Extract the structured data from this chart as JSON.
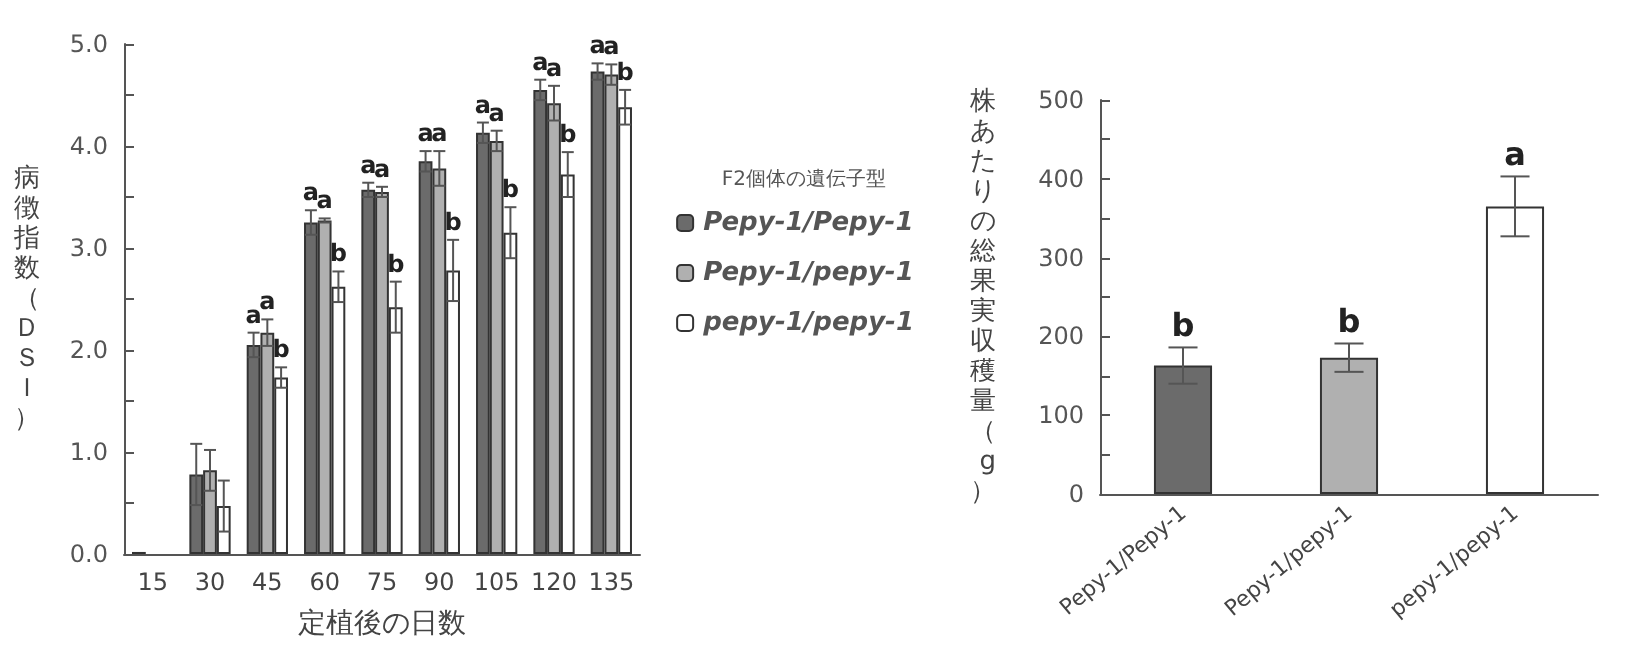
{
  "chart_data": [
    {
      "type": "bar",
      "categories": [
        "15",
        "30",
        "45",
        "60",
        "75",
        "90",
        "105",
        "120",
        "135"
      ],
      "xlabel": "定植後の日数",
      "ylabel": "病徴指数（ＤＳＩ）",
      "ylim": [
        0,
        5
      ],
      "yticks": [
        {
          "value": 0,
          "label": "0.0"
        },
        {
          "value": 0.5,
          "label": null
        },
        {
          "value": 1,
          "label": "1.0"
        },
        {
          "value": 1.5,
          "label": null
        },
        {
          "value": 2,
          "label": "2.0"
        },
        {
          "value": 2.5,
          "label": null
        },
        {
          "value": 3,
          "label": "3.0"
        },
        {
          "value": 3.5,
          "label": null
        },
        {
          "value": 4,
          "label": "4.0"
        },
        {
          "value": 4.5,
          "label": null
        },
        {
          "value": 5,
          "label": "5.0"
        }
      ],
      "legend": "right",
      "legend_title": "F2個体の遺伝子型",
      "series": [
        {
          "name": "Pepy-1/Pepy-1",
          "color": "#6b6b6b",
          "values": [
            0.02,
            0.78,
            2.05,
            3.25,
            3.57,
            3.85,
            4.13,
            4.55,
            4.73
          ],
          "errors": [
            null,
            0.3,
            0.12,
            0.12,
            0.07,
            0.1,
            0.1,
            0.1,
            0.08
          ],
          "value_labels": [
            null,
            null,
            "a",
            "a",
            "a",
            "a",
            "a",
            "a",
            "a"
          ]
        },
        {
          "name": "Pepy-1/pepy-1",
          "color": "#b0b0b0",
          "values": [
            null,
            0.82,
            2.17,
            3.27,
            3.55,
            3.78,
            4.05,
            4.42,
            4.7
          ],
          "errors": [
            null,
            0.2,
            0.13,
            0.02,
            0.05,
            0.17,
            0.1,
            0.17,
            0.1
          ],
          "value_labels": [
            null,
            null,
            "a",
            "a",
            "a",
            "a",
            "a",
            "a",
            "a"
          ]
        },
        {
          "name": "pepy-1/pepy-1",
          "color": "#ffffff",
          "values": [
            0,
            0.47,
            1.73,
            2.62,
            2.42,
            2.78,
            3.15,
            3.72,
            4.38
          ],
          "errors": [
            null,
            0.25,
            0.1,
            0.15,
            0.25,
            0.3,
            0.25,
            0.22,
            0.17
          ],
          "value_labels": [
            null,
            null,
            "b",
            "b",
            "b",
            "b",
            "b",
            "b",
            "b"
          ]
        }
      ]
    },
    {
      "type": "bar",
      "categories": [
        "Pepy-1/Pepy-1",
        "Pepy-1/pepy-1",
        "pepy-1/pepy-1"
      ],
      "ylabel": "株あたりの総果実収穫量（g）",
      "ylim": [
        0,
        500
      ],
      "yticks": [
        0,
        {
          "value": 50,
          "label": null
        },
        100,
        {
          "value": 150,
          "label": null
        },
        200,
        {
          "value": 250,
          "label": null
        },
        300,
        {
          "value": 350,
          "label": null
        },
        400,
        {
          "value": 450,
          "label": null
        },
        500
      ],
      "values": [
        163,
        173,
        365
      ],
      "colors": [
        "#6b6b6b",
        "#b0b0b0",
        "#ffffff"
      ],
      "errors": [
        23,
        18,
        38
      ],
      "value_labels": [
        "b",
        "b",
        "a"
      ]
    }
  ]
}
